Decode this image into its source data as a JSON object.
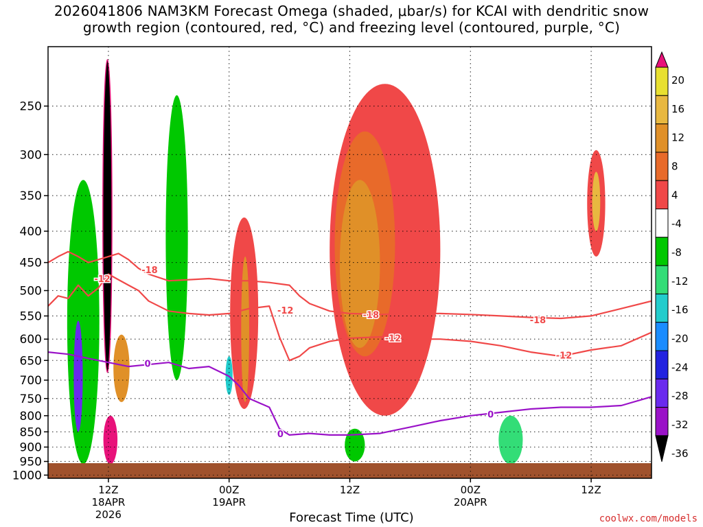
{
  "chart_data": {
    "type": "heatmap",
    "title": "2026041806 NAM3KM Forecast Omega (shaded, μbar/s) for KCAI with dendritic snow\ngrowth region (contoured, red, °C) and freezing level (contoured, purple, °C)",
    "xlabel": "Forecast Time (UTC)",
    "ylabel": "",
    "credit": "coolwx.com/models",
    "y_axis": {
      "levels_hpa": [
        250,
        300,
        350,
        400,
        450,
        500,
        550,
        600,
        650,
        700,
        750,
        800,
        850,
        900,
        950,
        1000
      ],
      "ylim": [
        1000,
        200
      ],
      "scale": "log-pressure"
    },
    "x_axis": {
      "range_hours": [
        0,
        60
      ],
      "ticks": [
        {
          "hour": 6,
          "label": "12Z",
          "sub1": "18APR",
          "sub2": "2026"
        },
        {
          "hour": 18,
          "label": "00Z",
          "sub1": "19APR",
          "sub2": ""
        },
        {
          "hour": 30,
          "label": "12Z",
          "sub1": "",
          "sub2": ""
        },
        {
          "hour": 42,
          "label": "00Z",
          "sub1": "20APR",
          "sub2": ""
        },
        {
          "hour": 54,
          "label": "12Z",
          "sub1": "",
          "sub2": ""
        }
      ]
    },
    "grid": true,
    "colorbar": {
      "labels": [
        "20",
        "16",
        "12",
        "8",
        "4",
        "-4",
        "-8",
        "-12",
        "-16",
        "-20",
        "-24",
        "-28",
        "-32",
        "-36"
      ],
      "colors": [
        "#e8e030",
        "#e8b840",
        "#e09028",
        "#e86a2a",
        "#f04848",
        "#ffffff",
        "#00c800",
        "#33dd77",
        "#22cccc",
        "#1a8cff",
        "#2222e0",
        "#6a2aee",
        "#9a12c8",
        "#b0b0b0"
      ],
      "top_color": "#e8127a",
      "bottom_color": "#000000"
    },
    "series": [
      {
        "name": "dendritic -12",
        "color": "#f04848",
        "x": [
          0,
          1,
          2,
          3,
          4,
          5,
          6,
          7,
          8,
          9,
          10,
          12,
          14,
          16,
          18,
          20,
          22,
          23,
          24,
          25,
          26,
          28,
          30,
          33,
          36,
          39,
          42,
          45,
          48,
          51,
          54,
          57,
          60
        ],
        "y": [
          530,
          510,
          515,
          490,
          510,
          495,
          470,
          480,
          490,
          500,
          520,
          540,
          545,
          548,
          545,
          535,
          530,
          595,
          650,
          640,
          620,
          605,
          598,
          595,
          600,
          600,
          605,
          615,
          630,
          640,
          625,
          615,
          585
        ]
      },
      {
        "name": "dendritic -18",
        "color": "#f04848",
        "x": [
          0,
          1,
          2,
          3,
          4,
          5,
          6,
          7,
          8,
          9,
          10,
          12,
          14,
          16,
          18,
          20,
          22,
          24,
          25,
          26,
          28,
          30,
          33,
          36,
          39,
          42,
          45,
          48,
          51,
          54,
          57,
          60
        ],
        "y": [
          450,
          440,
          432,
          440,
          450,
          445,
          440,
          435,
          445,
          460,
          470,
          482,
          480,
          478,
          482,
          482,
          485,
          490,
          510,
          525,
          540,
          545,
          547,
          545,
          545,
          547,
          550,
          553,
          555,
          550,
          535,
          520
        ]
      },
      {
        "name": "freezing 0",
        "color": "#9a12c8",
        "x": [
          0,
          2,
          4,
          6,
          8,
          10,
          12,
          14,
          16,
          18,
          19,
          20,
          22,
          23,
          24,
          26,
          28,
          30,
          33,
          36,
          39,
          42,
          45,
          48,
          51,
          54,
          57,
          60
        ],
        "y": [
          630,
          635,
          645,
          655,
          665,
          660,
          655,
          670,
          665,
          690,
          715,
          750,
          775,
          840,
          860,
          855,
          860,
          860,
          855,
          835,
          815,
          800,
          790,
          780,
          775,
          775,
          770,
          745
        ]
      }
    ],
    "contour_labels": [
      {
        "text": "-12",
        "x": 5.4,
        "y": 478
      },
      {
        "text": "-18",
        "x": 10.1,
        "y": 462
      },
      {
        "text": "-12",
        "x": 23.6,
        "y": 538
      },
      {
        "text": "-18",
        "x": 32.1,
        "y": 547
      },
      {
        "text": "-12",
        "x": 34.3,
        "y": 597
      },
      {
        "text": "-18",
        "x": 48.7,
        "y": 558
      },
      {
        "text": "-12",
        "x": 51.3,
        "y": 637
      },
      {
        "text": "0",
        "x": 9.9,
        "y": 657
      },
      {
        "text": "0",
        "x": 23.1,
        "y": 856
      },
      {
        "text": "0",
        "x": 44.0,
        "y": 795
      }
    ],
    "shaded_regions": [
      {
        "value": 8,
        "hour": 31.5,
        "p_top": 275,
        "p_bot": 640,
        "w_hours": 6
      },
      {
        "value": 12,
        "hour": 31.0,
        "p_top": 330,
        "p_bot": 620,
        "w_hours": 4
      },
      {
        "value": 4,
        "hour": 33.5,
        "p_top": 230,
        "p_bot": 800,
        "w_hours": 11
      },
      {
        "value": 4,
        "hour": 19.5,
        "p_top": 380,
        "p_bot": 780,
        "w_hours": 2.8
      },
      {
        "value": 12,
        "hour": 19.6,
        "p_top": 440,
        "p_bot": 760,
        "w_hours": 0.8
      },
      {
        "value": 16,
        "hour": 54.5,
        "p_top": 320,
        "p_bot": 400,
        "w_hours": 0.8
      },
      {
        "value": 4,
        "hour": 54.5,
        "p_top": 295,
        "p_bot": 440,
        "w_hours": 1.8
      },
      {
        "value": -8,
        "hour": 3.5,
        "p_top": 330,
        "p_bot": 960,
        "w_hours": 3.2
      },
      {
        "value": -28,
        "hour": 3.0,
        "p_top": 560,
        "p_bot": 850,
        "w_hours": 0.9
      },
      {
        "value": -36,
        "hour": 5.9,
        "p_top": 210,
        "p_bot": 680,
        "w_hours": 0.9
      },
      {
        "value": 20,
        "hour": 6.2,
        "p_top": 800,
        "p_bot": 960,
        "w_hours": 1.4
      },
      {
        "value": 12,
        "hour": 7.3,
        "p_top": 590,
        "p_bot": 760,
        "w_hours": 1.6
      },
      {
        "value": -8,
        "hour": 12.8,
        "p_top": 240,
        "p_bot": 700,
        "w_hours": 2.2
      },
      {
        "value": -12,
        "hour": 46.0,
        "p_top": 800,
        "p_bot": 960,
        "w_hours": 2.4
      },
      {
        "value": -8,
        "hour": 30.5,
        "p_top": 840,
        "p_bot": 950,
        "w_hours": 2.0
      },
      {
        "value": -16,
        "hour": 18.0,
        "p_top": 640,
        "p_bot": 740,
        "w_hours": 0.7
      }
    ]
  }
}
